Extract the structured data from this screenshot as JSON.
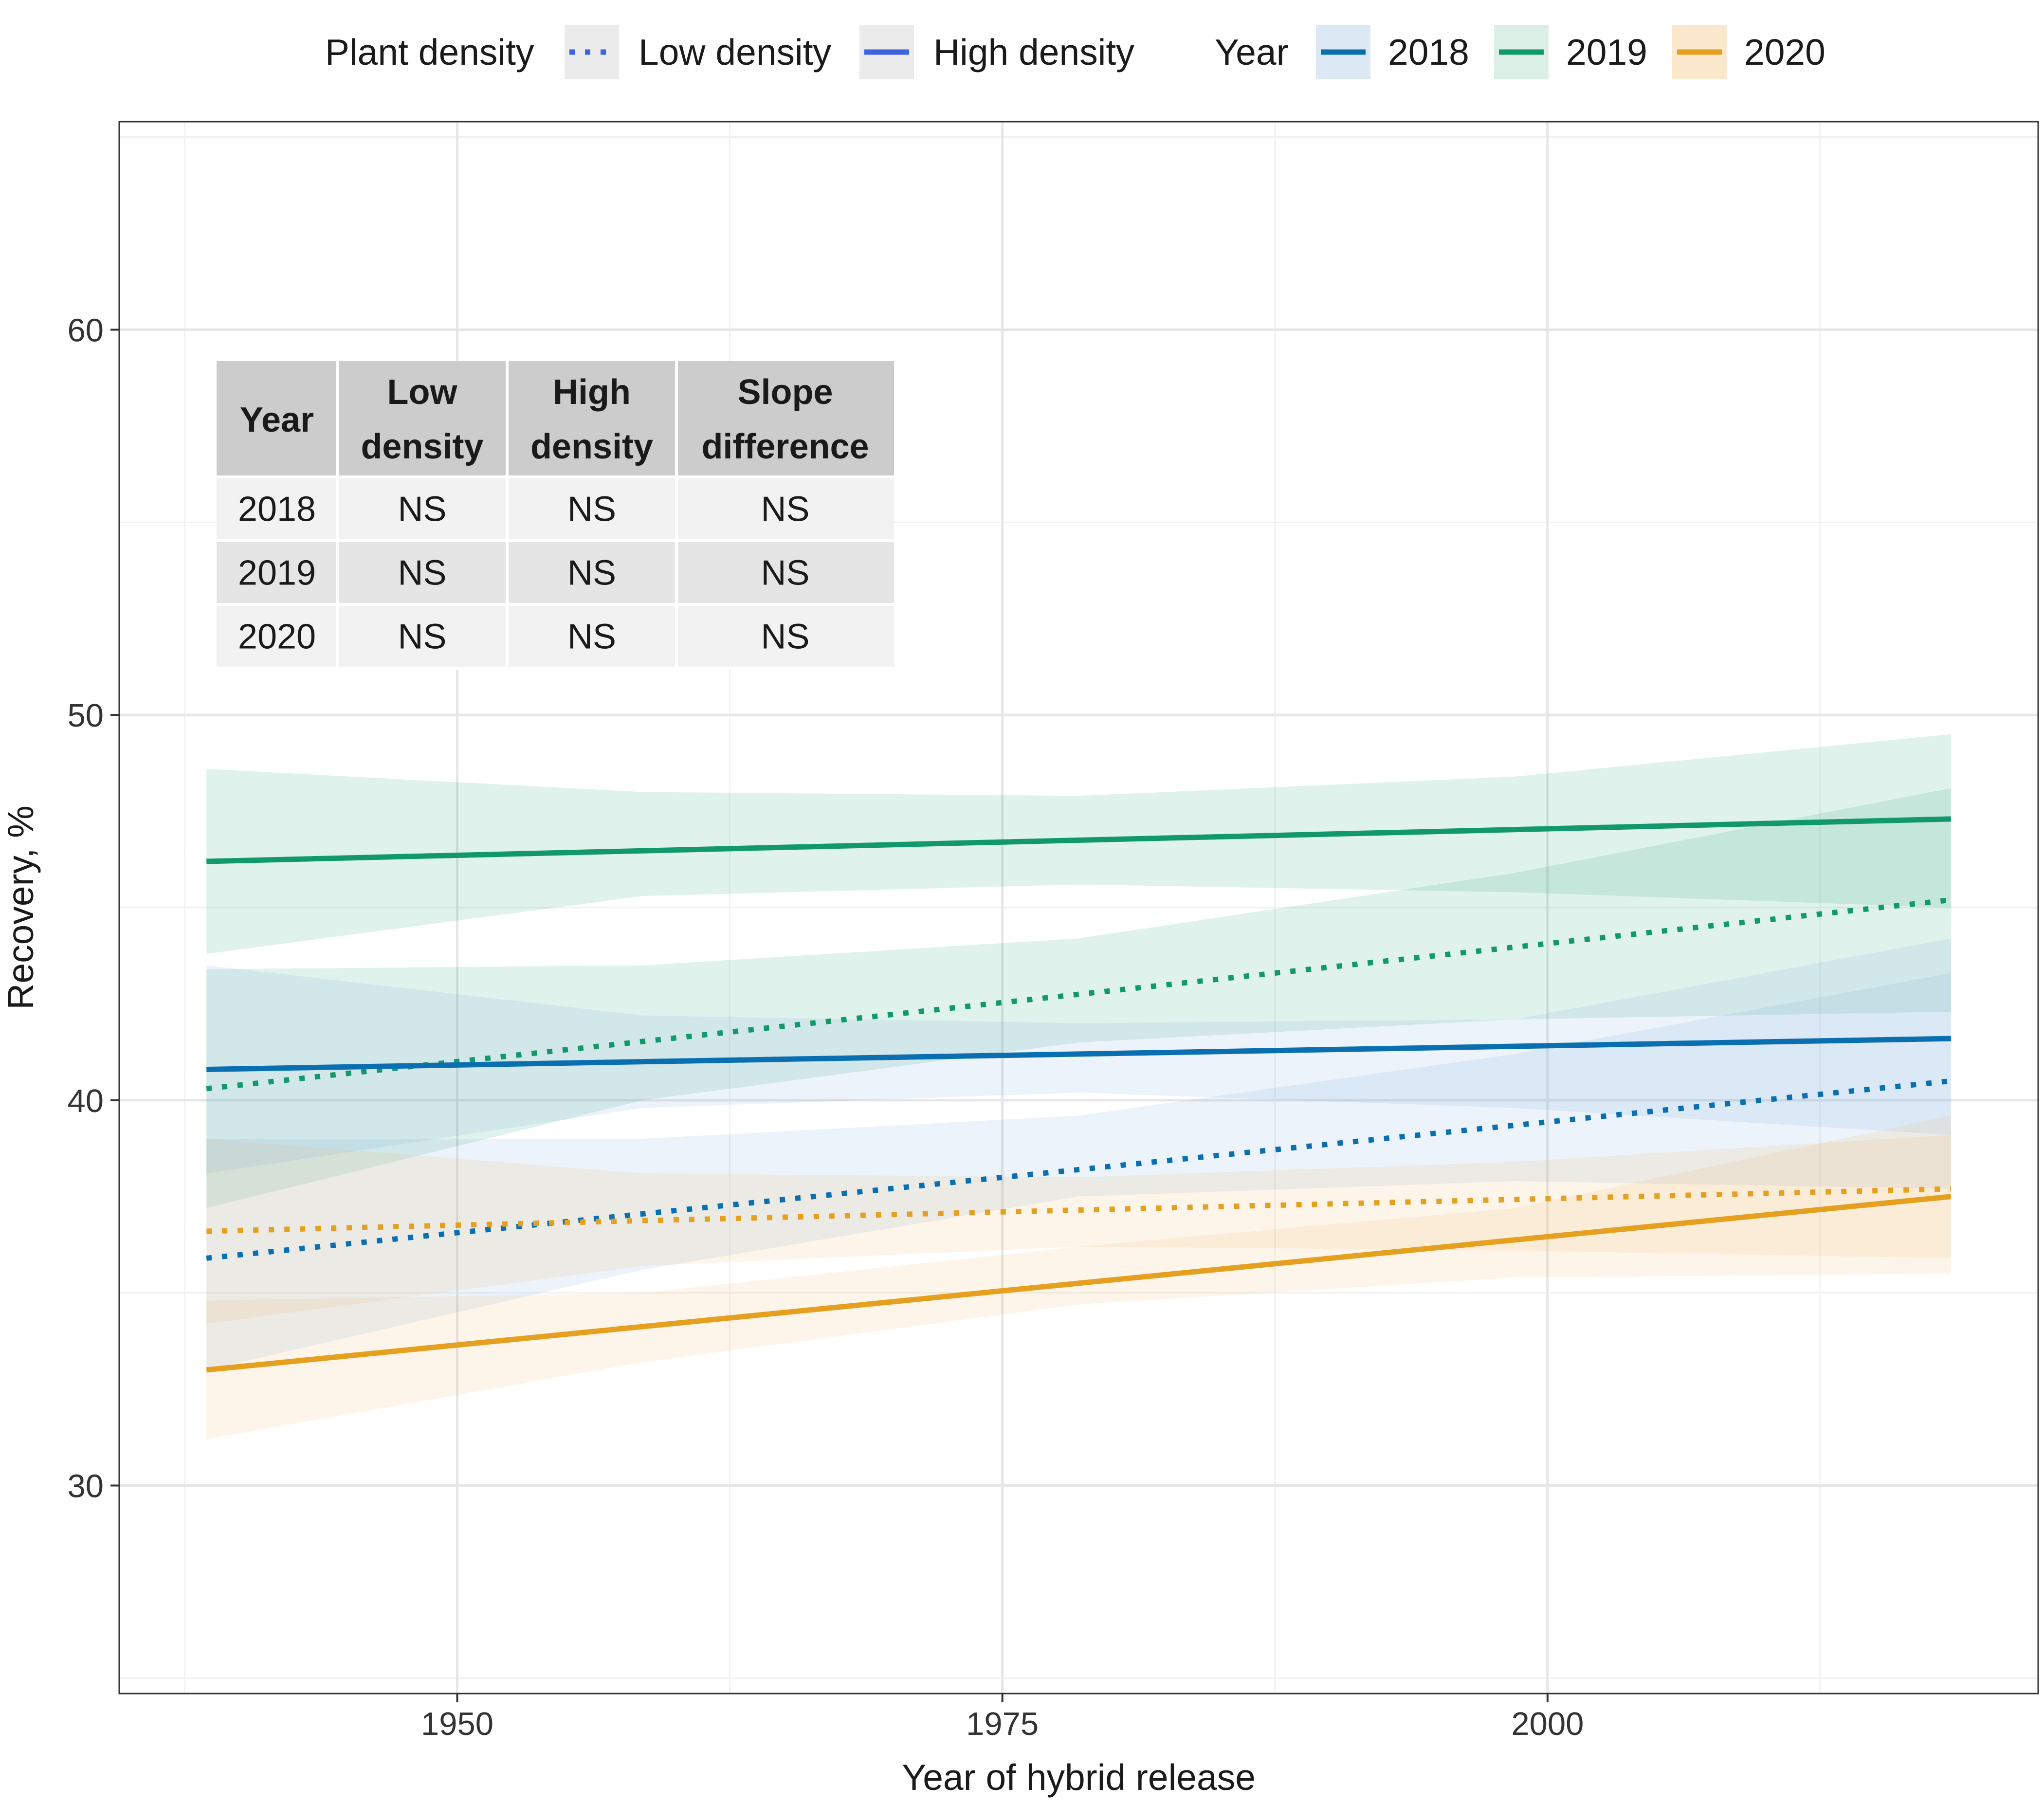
{
  "chart_data": {
    "type": "line",
    "xlabel": "Year of hybrid release",
    "ylabel": "Recovery, %",
    "xlim": [
      1934.5,
      2022.5
    ],
    "ylim": [
      24.6,
      65.4
    ],
    "x_ticks": [
      1950,
      1975,
      2000
    ],
    "x_minor_ticks": [
      1937.5,
      1962.5,
      1987.5,
      2012.5
    ],
    "y_ticks": [
      30,
      40,
      50,
      60
    ],
    "y_minor_ticks": [
      25,
      35,
      45,
      55,
      65
    ],
    "x_range": [
      1938.5,
      2018.5
    ],
    "legend": {
      "position": "top",
      "density_title": "Plant density",
      "density_entries": [
        {
          "label": "Low density",
          "line": "dotted"
        },
        {
          "label": "High density",
          "line": "solid"
        }
      ],
      "year_title": "Year",
      "year_entries": [
        {
          "label": "2018",
          "color": "#0a6fb0",
          "fill": "#dce9f5"
        },
        {
          "label": "2019",
          "color": "#12996b",
          "fill": "#dcefe7"
        },
        {
          "label": "2020",
          "color": "#e5a020",
          "fill": "#fbe8cc"
        }
      ],
      "density_key_color": "#3e63dd"
    },
    "series": [
      {
        "name": "2019 High density",
        "year": "2019",
        "density": "High density",
        "color": "#12996b",
        "fill": "#12996b",
        "x": [
          1938.5,
          2018.5
        ],
        "y": [
          46.2,
          47.3
        ],
        "band_x": [
          1938.5,
          1958.5,
          1978.5,
          1998.5,
          2018.5
        ],
        "band_lower": [
          43.8,
          45.3,
          45.6,
          45.4,
          45.0
        ],
        "band_upper": [
          48.6,
          48.0,
          47.9,
          48.4,
          49.5
        ]
      },
      {
        "name": "2019 Low density",
        "year": "2019",
        "density": "Low density",
        "color": "#12996b",
        "fill": "#12996b",
        "x": [
          1938.5,
          2018.5
        ],
        "y": [
          40.3,
          45.2
        ],
        "band_x": [
          1938.5,
          1958.5,
          1978.5,
          1998.5,
          2018.5
        ],
        "band_lower": [
          37.2,
          40.0,
          41.5,
          42.1,
          42.3
        ],
        "band_upper": [
          43.4,
          43.5,
          44.2,
          45.9,
          48.1
        ]
      },
      {
        "name": "2018 High density",
        "year": "2018",
        "density": "High density",
        "color": "#0a6fb0",
        "fill": "#6aa6d6",
        "x": [
          1938.5,
          2018.5
        ],
        "y": [
          40.8,
          41.6
        ],
        "band_x": [
          1938.5,
          1958.5,
          1978.5,
          1998.5,
          2018.5
        ],
        "band_lower": [
          38.1,
          39.8,
          40.2,
          39.8,
          39.1
        ],
        "band_upper": [
          43.5,
          42.2,
          42.0,
          42.1,
          44.2
        ]
      },
      {
        "name": "2018 Low density",
        "year": "2018",
        "density": "Low density",
        "color": "#0a6fb0",
        "fill": "#6aa6d6",
        "x": [
          1938.5,
          2018.5
        ],
        "y": [
          35.9,
          40.5
        ],
        "band_x": [
          1938.5,
          1958.5,
          1978.5,
          1998.5,
          2018.5
        ],
        "band_lower": [
          33.0,
          35.6,
          37.5,
          37.9,
          37.7
        ],
        "band_upper": [
          39.0,
          39.0,
          39.6,
          41.2,
          43.3
        ]
      },
      {
        "name": "2020 Low density",
        "year": "2020",
        "density": "Low density",
        "color": "#e5a020",
        "fill": "#eeb45a",
        "x": [
          1938.5,
          2018.5
        ],
        "y": [
          36.6,
          37.7
        ],
        "band_x": [
          1938.5,
          1958.5,
          1978.5,
          1998.5,
          2018.5
        ],
        "band_lower": [
          34.2,
          35.7,
          36.2,
          36.1,
          35.9
        ],
        "band_upper": [
          39.0,
          38.1,
          38.0,
          38.4,
          39.1
        ]
      },
      {
        "name": "2020 High density",
        "year": "2020",
        "density": "High density",
        "color": "#e5a020",
        "fill": "#eeb45a",
        "x": [
          1938.5,
          2018.5
        ],
        "y": [
          33.0,
          37.5
        ],
        "band_x": [
          1938.5,
          1958.5,
          1978.5,
          1998.5,
          2018.5
        ],
        "band_lower": [
          31.2,
          33.2,
          34.7,
          35.4,
          35.5
        ],
        "band_upper": [
          34.8,
          35.0,
          36.2,
          37.2,
          39.6
        ]
      }
    ],
    "inset_table": {
      "headers": [
        [
          "Year"
        ],
        [
          "Low",
          "density"
        ],
        [
          "High",
          "density"
        ],
        [
          "Slope",
          "difference"
        ]
      ],
      "rows": [
        [
          "2018",
          "NS",
          "NS",
          "NS"
        ],
        [
          "2019",
          "NS",
          "NS",
          "NS"
        ],
        [
          "2020",
          "NS",
          "NS",
          "NS"
        ]
      ]
    }
  }
}
